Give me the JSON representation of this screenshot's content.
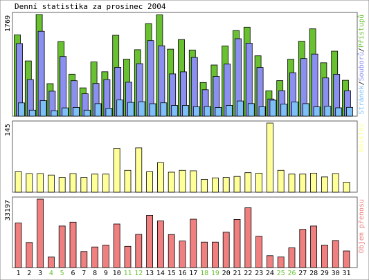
{
  "chart_data": {
    "type": "bar",
    "title": "Denní statistika za prosinec 2004",
    "categories": [
      "1",
      "2",
      "3",
      "4",
      "5",
      "6",
      "7",
      "8",
      "9",
      "10",
      "11",
      "12",
      "13",
      "14",
      "15",
      "16",
      "17",
      "18",
      "19",
      "20",
      "21",
      "22",
      "23",
      "24",
      "25",
      "26",
      "27",
      "28",
      "29",
      "30",
      "31"
    ],
    "weekend_days": [
      "4",
      "5",
      "11",
      "12",
      "18",
      "19",
      "25",
      "26"
    ],
    "panels": [
      {
        "id": "top",
        "max_label": "1769",
        "ylim": [
          0,
          1769
        ],
        "legend": [
          {
            "name": "Stránek",
            "color": "#7fbff8"
          },
          {
            "name": "Souborů",
            "color": "#8a8ff0"
          },
          {
            "name": "Přístupů",
            "color": "#69c031"
          }
        ],
        "series": [
          {
            "name": "Přístupů",
            "color": "#69c031",
            "values": [
              1415,
              962,
              1769,
              565,
              1299,
              731,
              492,
              944,
              773,
              1408,
              993,
              1156,
              1611,
              1764,
              1166,
              1333,
              1152,
              586,
              890,
              1223,
              1490,
              1549,
              1051,
              442,
              619,
              991,
              1305,
              1520,
              929,
              1131,
              625
            ]
          },
          {
            "name": "Souborů",
            "color": "#8a8ff0",
            "values": [
              1263,
              636,
              1478,
              434,
              1039,
              617,
              390,
              569,
              636,
              850,
              591,
              913,
              1315,
              1225,
              735,
              771,
              1022,
              460,
              692,
              906,
              1348,
              1270,
              847,
              299,
              443,
              756,
              1003,
              1081,
              666,
              728,
              443
            ]
          },
          {
            "name": "Stránek",
            "color": "#7fbff8",
            "values": [
              231,
              105,
              270,
              95,
              143,
              152,
              105,
              218,
              136,
              281,
              239,
              251,
              217,
              232,
              186,
              186,
              164,
              166,
              150,
              187,
              264,
              219,
              164,
              278,
              211,
              248,
              218,
              161,
              173,
              145,
              153
            ]
          }
        ]
      },
      {
        "id": "middle",
        "max_label": "145",
        "ylim": [
          0,
          145
        ],
        "legend": [
          {
            "name": "Návštěv",
            "color": "#ffff98"
          }
        ],
        "series": [
          {
            "name": "Návštěv",
            "color": "#ffff98",
            "values": [
              43,
              39,
              39,
              36,
              31,
              39,
              31,
              38,
              38,
              92,
              46,
              93,
              43,
              62,
              42,
              46,
              45,
              27,
              30,
              31,
              33,
              41,
              40,
              145,
              46,
              38,
              38,
              40,
              32,
              39,
              21
            ]
          }
        ]
      },
      {
        "id": "bottom",
        "max_label": "33197",
        "ylim": [
          0,
          33197
        ],
        "legend": [
          {
            "name": "Objem přenosu",
            "color": "#f08080"
          }
        ],
        "series": [
          {
            "name": "Objem přenosu",
            "color": "#f08080",
            "values": [
              21638,
              12123,
              33197,
              5103,
              20138,
              22033,
              7780,
              10006,
              10913,
              21130,
              10302,
              16085,
              25346,
              22633,
              16016,
              12924,
              23466,
              12352,
              12353,
              17138,
              23338,
              28994,
              15195,
              5779,
              5138,
              9577,
              18533,
              20137,
              10899,
              13112,
              8040
            ]
          }
        ]
      }
    ]
  }
}
